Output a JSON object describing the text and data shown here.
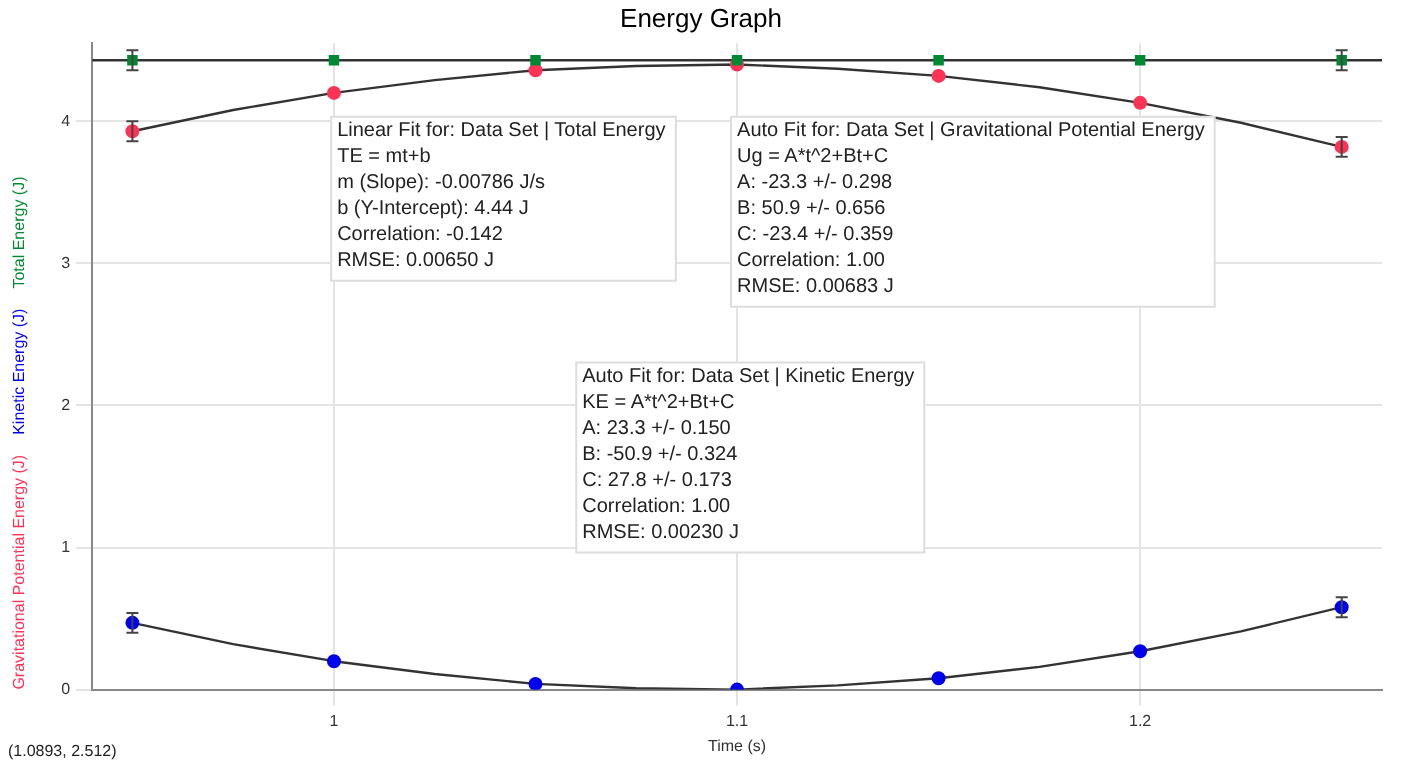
{
  "chart_data": {
    "type": "scatter",
    "title": "Energy Graph",
    "xlabel": "Time (s)",
    "xlim": [
      0.94,
      1.26
    ],
    "xticks": [
      1,
      1.1,
      1.2
    ],
    "ylim": [
      0,
      4.55
    ],
    "yticks": [
      0,
      1,
      2,
      3,
      4
    ],
    "grid": true,
    "legend": false,
    "series": [
      {
        "name": "Gravitational Potential Energy (J)",
        "color": "#ff3355",
        "marker": "circle",
        "x": [
          0.95,
          1.0,
          1.05,
          1.1,
          1.15,
          1.2,
          1.25
        ],
        "values": [
          3.93,
          4.2,
          4.36,
          4.4,
          4.32,
          4.13,
          3.82
        ],
        "errors": [
          0.07,
          null,
          null,
          null,
          null,
          null,
          0.07
        ]
      },
      {
        "name": "Kinetic Energy (J)",
        "color": "#0000ee",
        "marker": "circle",
        "x": [
          0.95,
          1.0,
          1.05,
          1.1,
          1.15,
          1.2,
          1.25
        ],
        "values": [
          0.47,
          0.2,
          0.04,
          0.0,
          0.08,
          0.27,
          0.58
        ],
        "errors": [
          0.07,
          null,
          null,
          null,
          null,
          null,
          0.07
        ]
      },
      {
        "name": "Total Energy (J)",
        "color": "#008833",
        "marker": "square",
        "x": [
          0.95,
          1.0,
          1.05,
          1.1,
          1.15,
          1.2,
          1.25
        ],
        "values": [
          4.43,
          4.43,
          4.43,
          4.43,
          4.43,
          4.43,
          4.43
        ],
        "errors": [
          0.07,
          null,
          null,
          null,
          null,
          null,
          0.07
        ]
      },
      {
        "type": "line",
        "color": "#333333",
        "marker": "none",
        "x": [
          0.94,
          1.26
        ],
        "values": [
          4.43,
          4.43
        ]
      },
      {
        "type": "line",
        "color": "#333333",
        "marker": "none",
        "x": [
          0.95,
          0.975,
          1.0,
          1.025,
          1.05,
          1.075,
          1.1,
          1.125,
          1.15,
          1.175,
          1.2,
          1.225,
          1.25
        ],
        "values": [
          3.93,
          4.08,
          4.2,
          4.29,
          4.36,
          4.39,
          4.4,
          4.37,
          4.32,
          4.24,
          4.13,
          3.99,
          3.82
        ]
      },
      {
        "type": "line",
        "color": "#333333",
        "marker": "none",
        "x": [
          0.95,
          0.975,
          1.0,
          1.025,
          1.05,
          1.075,
          1.1,
          1.125,
          1.15,
          1.175,
          1.2,
          1.225,
          1.25
        ],
        "values": [
          0.47,
          0.32,
          0.2,
          0.11,
          0.04,
          0.01,
          0.0,
          0.03,
          0.08,
          0.16,
          0.27,
          0.41,
          0.58
        ]
      }
    ],
    "annotations": [
      "Linear Fit for: Data Set | Total Energy\nTE = mt+b\nm (Slope): -0.00786 J/s\nb (Y-Intercept): 4.44 J\nCorrelation: -0.142\nRMSE: 0.00650 J",
      "Auto Fit for: Data Set | Gravitational Potential Energy\nUg = A*t^2+Bt+C\nA: -23.3 +/- 0.298\nB: 50.9 +/- 0.656\nC: -23.4 +/- 0.359\nCorrelation: 1.00\nRMSE: 0.00683 J",
      "Auto Fit for: Data Set | Kinetic Energy\nKE = A*t^2+Bt+C\nA: 23.3 +/- 0.150\nB: -50.9 +/- 0.324\nC: 27.8 +/- 0.173\nCorrelation: 1.00\nRMSE: 0.00230 J",
      "(1.0893, 2.512)"
    ]
  }
}
